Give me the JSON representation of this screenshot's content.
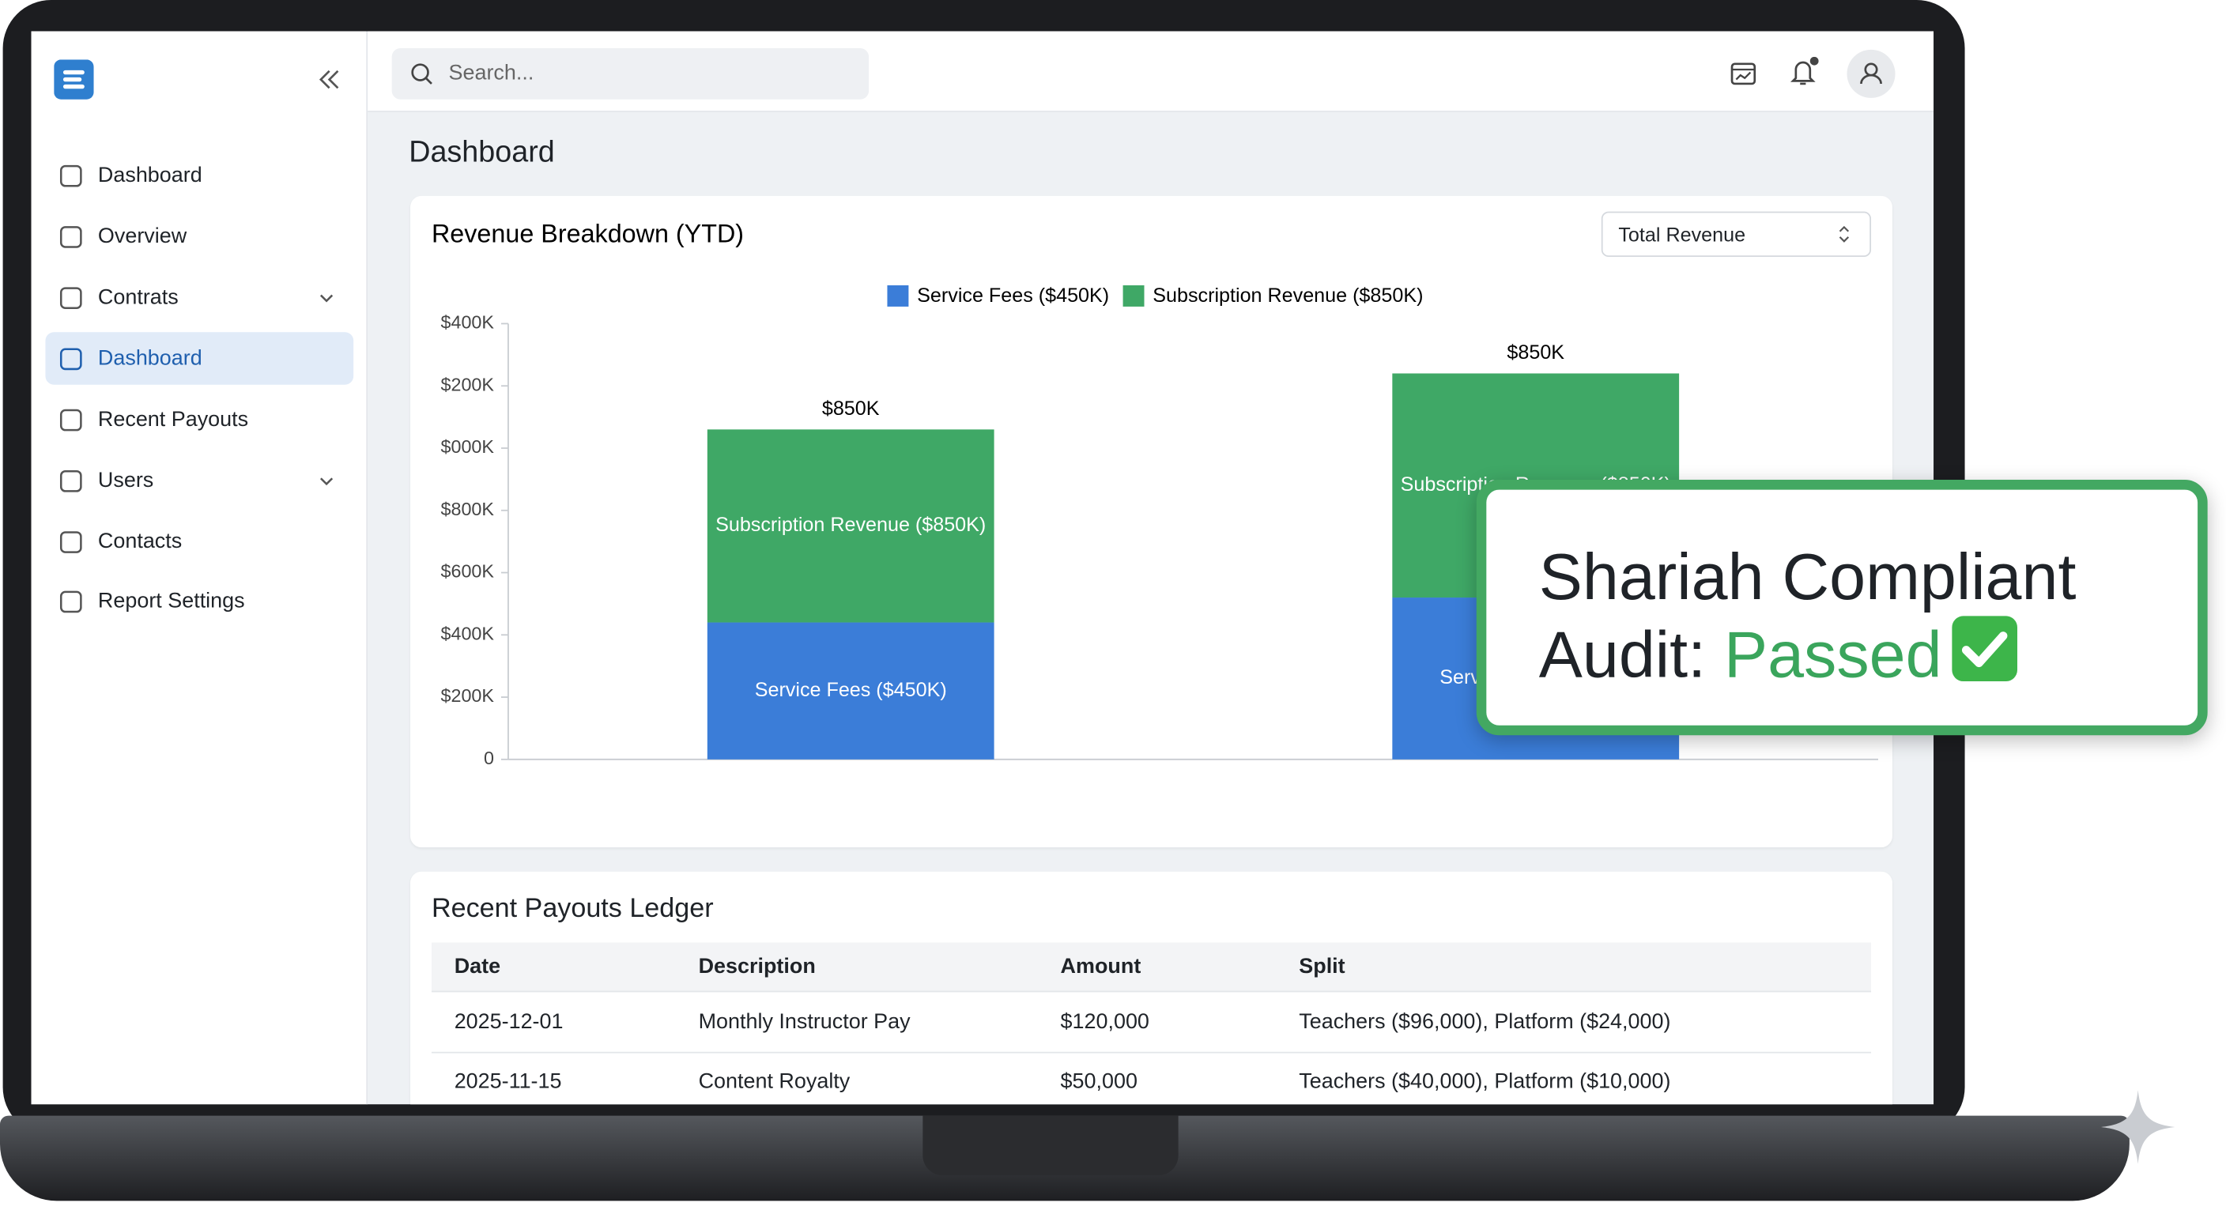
{
  "sidebar": {
    "nav": [
      "Dashboard",
      "Overview",
      "Contrats",
      "Dashboard",
      "Recent Payouts",
      "Users",
      "Contacts",
      "Report Settings"
    ]
  },
  "topbar": {
    "search_placeholder": "Search..."
  },
  "page_title": "Dashboard",
  "chart_data": {
    "type": "bar",
    "stacked": true,
    "title": "Revenue Breakdown (YTD)",
    "dropdown": "Total Revenue",
    "categories": [
      null,
      null
    ],
    "series": [
      {
        "name": "Service Fees ($450K)",
        "color": "#3b7dd8",
        "values": [
          440,
          520
        ]
      },
      {
        "name": "Subscription Revenue ($850K)",
        "color": "#3fa866",
        "values": [
          620,
          720
        ]
      }
    ],
    "annotations": [
      "$850K",
      "$850K"
    ],
    "ylim": [
      0,
      1400
    ],
    "yticks": [
      0,
      {
        "value": 200,
        "label": "$200K"
      },
      {
        "value": 400,
        "label": "$400K"
      },
      {
        "value": 600,
        "label": "$600K"
      },
      {
        "value": 800,
        "label": "$800K"
      },
      {
        "value": 1000,
        "label": "$000K"
      },
      {
        "value": 1200,
        "label": "$200K"
      },
      {
        "value": 1400,
        "label": "$400K"
      }
    ],
    "legend": "top"
  },
  "ledger": {
    "title": "Recent Payouts Ledger",
    "columns": [
      "Date",
      "Description",
      "Amount",
      "Split"
    ],
    "rows": [
      [
        "2025-12-01",
        "Monthly Instructor Pay",
        "$120,000",
        "Teachers ($96,000), Platform ($24,000)"
      ],
      [
        "2025-11-15",
        "Content Royalty",
        "$50,000",
        "Teachers ($40,000), Platform ($10,000)"
      ]
    ]
  },
  "badge": {
    "line1": "Shariah Compliant",
    "prefix": "Audit:",
    "status": "Passed"
  }
}
